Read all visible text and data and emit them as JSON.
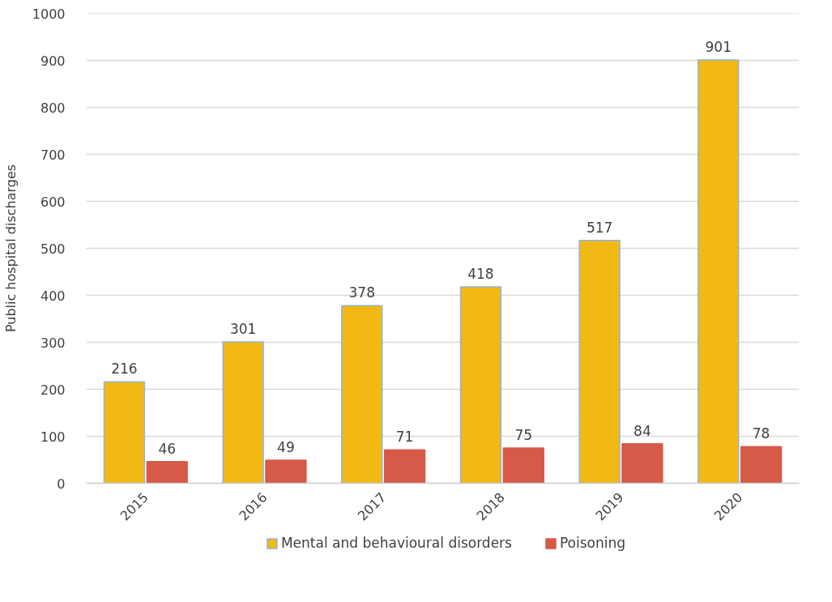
{
  "chart_data": {
    "type": "bar",
    "categories": [
      "2015",
      "2016",
      "2017",
      "2018",
      "2019",
      "2020"
    ],
    "series": [
      {
        "name": "Mental and behavioural disorders",
        "color": "#f2b914",
        "values": [
          216,
          301,
          378,
          418,
          517,
          901
        ]
      },
      {
        "name": "Poisoning",
        "color": "#d55a48",
        "values": [
          46,
          49,
          71,
          75,
          84,
          78
        ]
      }
    ],
    "ylabel": "Public hospital discharges",
    "ylim": [
      0,
      1000
    ],
    "yticks": [
      0,
      100,
      200,
      300,
      400,
      500,
      600,
      700,
      800,
      900,
      1000
    ],
    "grid": "y",
    "legend": "bottom",
    "data_labels": true
  }
}
